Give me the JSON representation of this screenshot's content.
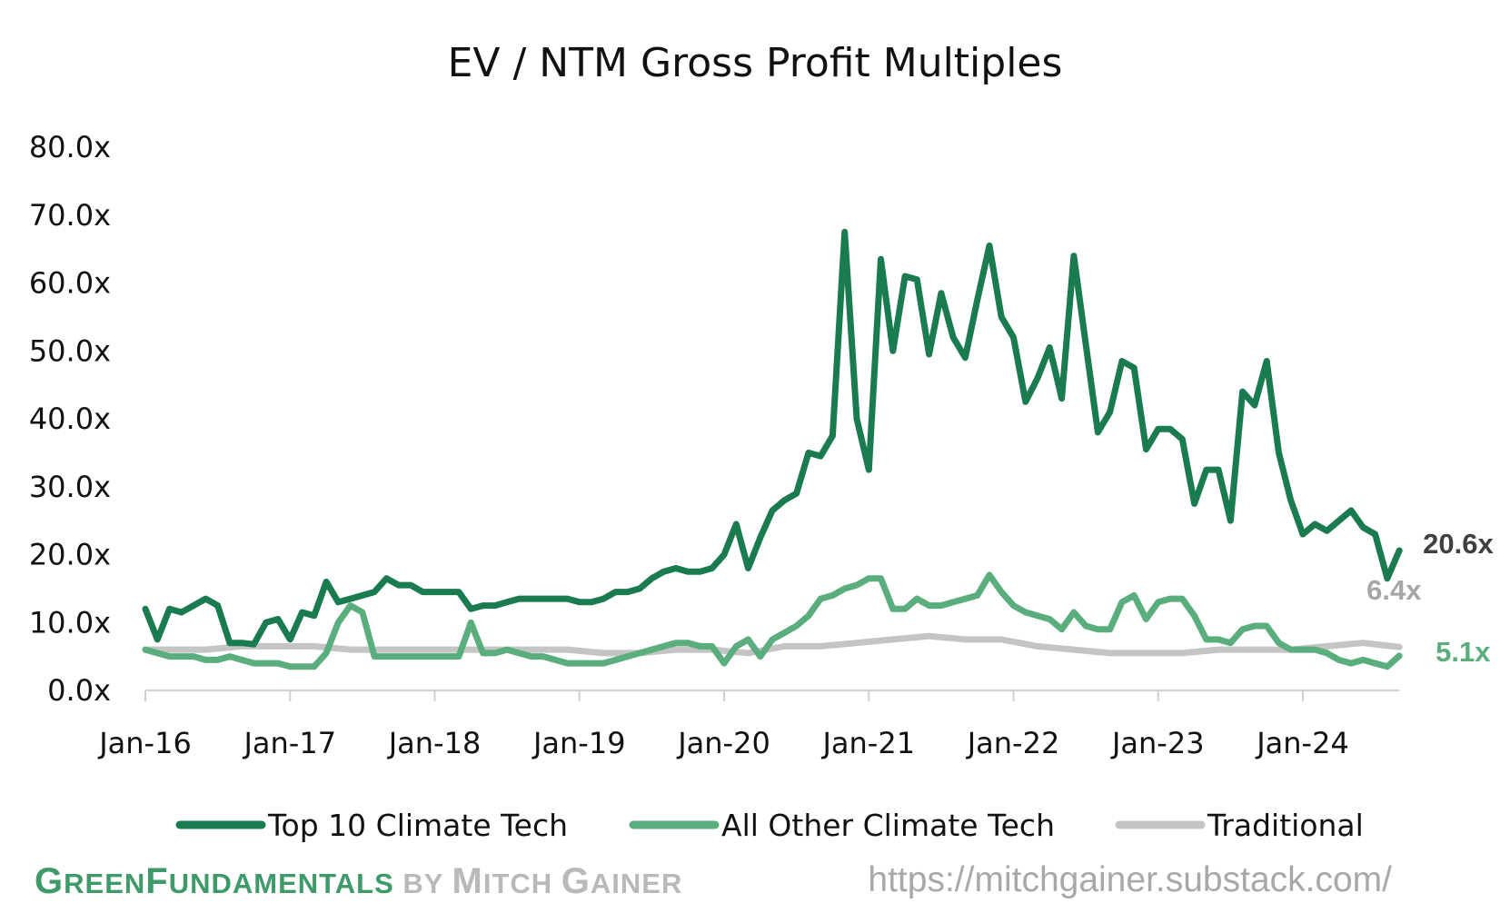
{
  "chart_data": {
    "type": "line",
    "title": "EV / NTM Gross Profit Multiples",
    "xlabel": "",
    "ylabel": "",
    "ylim": [
      0,
      80
    ],
    "yticks": [
      "0.0x",
      "10.0x",
      "20.0x",
      "30.0x",
      "40.0x",
      "50.0x",
      "60.0x",
      "70.0x",
      "80.0x"
    ],
    "xlim": [
      "2016-01",
      "2024-09"
    ],
    "xticks": [
      "Jan-16",
      "Jan-17",
      "Jan-18",
      "Jan-19",
      "Jan-20",
      "Jan-21",
      "Jan-22",
      "Jan-23",
      "Jan-24"
    ],
    "grid": false,
    "legend_position": "bottom",
    "series": [
      {
        "name": "Top 10 Climate Tech",
        "color": "#1a7a50",
        "end_label": "20.6x",
        "points": [
          [
            "2016-01",
            12.0
          ],
          [
            "2016-02",
            7.5
          ],
          [
            "2016-03",
            12.0
          ],
          [
            "2016-04",
            11.5
          ],
          [
            "2016-05",
            12.5
          ],
          [
            "2016-06",
            13.5
          ],
          [
            "2016-07",
            12.5
          ],
          [
            "2016-08",
            7.0
          ],
          [
            "2016-09",
            7.0
          ],
          [
            "2016-10",
            6.8
          ],
          [
            "2016-11",
            10.0
          ],
          [
            "2016-12",
            10.5
          ],
          [
            "2017-01",
            7.5
          ],
          [
            "2017-02",
            11.5
          ],
          [
            "2017-03",
            11.0
          ],
          [
            "2017-04",
            16.0
          ],
          [
            "2017-05",
            13.0
          ],
          [
            "2017-06",
            13.5
          ],
          [
            "2017-07",
            14.0
          ],
          [
            "2017-08",
            14.5
          ],
          [
            "2017-09",
            16.5
          ],
          [
            "2017-10",
            15.5
          ],
          [
            "2017-11",
            15.5
          ],
          [
            "2017-12",
            14.5
          ],
          [
            "2018-01",
            14.5
          ],
          [
            "2018-02",
            14.5
          ],
          [
            "2018-03",
            14.5
          ],
          [
            "2018-04",
            12.0
          ],
          [
            "2018-05",
            12.5
          ],
          [
            "2018-06",
            12.5
          ],
          [
            "2018-07",
            13.0
          ],
          [
            "2018-08",
            13.5
          ],
          [
            "2018-09",
            13.5
          ],
          [
            "2018-10",
            13.5
          ],
          [
            "2018-11",
            13.5
          ],
          [
            "2018-12",
            13.5
          ],
          [
            "2019-01",
            13.0
          ],
          [
            "2019-02",
            13.0
          ],
          [
            "2019-03",
            13.5
          ],
          [
            "2019-04",
            14.5
          ],
          [
            "2019-05",
            14.5
          ],
          [
            "2019-06",
            15.0
          ],
          [
            "2019-07",
            16.5
          ],
          [
            "2019-08",
            17.5
          ],
          [
            "2019-09",
            18.0
          ],
          [
            "2019-10",
            17.5
          ],
          [
            "2019-11",
            17.5
          ],
          [
            "2019-12",
            18.0
          ],
          [
            "2020-01",
            20.0
          ],
          [
            "2020-02",
            24.5
          ],
          [
            "2020-03",
            18.0
          ],
          [
            "2020-04",
            22.5
          ],
          [
            "2020-05",
            26.5
          ],
          [
            "2020-06",
            28.0
          ],
          [
            "2020-07",
            29.0
          ],
          [
            "2020-08",
            35.0
          ],
          [
            "2020-09",
            34.5
          ],
          [
            "2020-10",
            37.5
          ],
          [
            "2020-11",
            67.5
          ],
          [
            "2020-12",
            40.0
          ],
          [
            "2021-01",
            32.5
          ],
          [
            "2021-02",
            63.5
          ],
          [
            "2021-03",
            50.0
          ],
          [
            "2021-04",
            61.0
          ],
          [
            "2021-05",
            60.5
          ],
          [
            "2021-06",
            49.5
          ],
          [
            "2021-07",
            58.5
          ],
          [
            "2021-08",
            52.0
          ],
          [
            "2021-09",
            49.0
          ],
          [
            "2021-10",
            57.5
          ],
          [
            "2021-11",
            65.5
          ],
          [
            "2021-12",
            55.0
          ],
          [
            "2022-01",
            52.0
          ],
          [
            "2022-02",
            42.5
          ],
          [
            "2022-03",
            46.0
          ],
          [
            "2022-04",
            50.5
          ],
          [
            "2022-05",
            43.0
          ],
          [
            "2022-06",
            64.0
          ],
          [
            "2022-07",
            51.0
          ],
          [
            "2022-08",
            38.0
          ],
          [
            "2022-09",
            41.0
          ],
          [
            "2022-10",
            48.5
          ],
          [
            "2022-11",
            47.5
          ],
          [
            "2022-12",
            35.5
          ],
          [
            "2023-01",
            38.5
          ],
          [
            "2023-02",
            38.5
          ],
          [
            "2023-03",
            37.0
          ],
          [
            "2023-04",
            27.5
          ],
          [
            "2023-05",
            32.5
          ],
          [
            "2023-06",
            32.5
          ],
          [
            "2023-07",
            25.0
          ],
          [
            "2023-08",
            44.0
          ],
          [
            "2023-09",
            42.0
          ],
          [
            "2023-10",
            48.5
          ],
          [
            "2023-11",
            35.0
          ],
          [
            "2023-12",
            28.0
          ],
          [
            "2024-01",
            23.0
          ],
          [
            "2024-02",
            24.5
          ],
          [
            "2024-03",
            23.5
          ],
          [
            "2024-04",
            25.0
          ],
          [
            "2024-05",
            26.5
          ],
          [
            "2024-06",
            24.0
          ],
          [
            "2024-07",
            23.0
          ],
          [
            "2024-08",
            16.5
          ],
          [
            "2024-09",
            20.6
          ]
        ]
      },
      {
        "name": "All Other Climate Tech",
        "color": "#5aad7d",
        "end_label": "5.1x",
        "points": [
          [
            "2016-01",
            6.0
          ],
          [
            "2016-02",
            5.5
          ],
          [
            "2016-03",
            5.0
          ],
          [
            "2016-04",
            5.0
          ],
          [
            "2016-05",
            5.0
          ],
          [
            "2016-06",
            4.5
          ],
          [
            "2016-07",
            4.5
          ],
          [
            "2016-08",
            5.0
          ],
          [
            "2016-09",
            4.5
          ],
          [
            "2016-10",
            4.0
          ],
          [
            "2016-11",
            4.0
          ],
          [
            "2016-12",
            4.0
          ],
          [
            "2017-01",
            3.5
          ],
          [
            "2017-02",
            3.5
          ],
          [
            "2017-03",
            3.5
          ],
          [
            "2017-04",
            5.5
          ],
          [
            "2017-05",
            10.0
          ],
          [
            "2017-06",
            12.5
          ],
          [
            "2017-07",
            11.5
          ],
          [
            "2017-08",
            5.0
          ],
          [
            "2017-09",
            5.0
          ],
          [
            "2017-10",
            5.0
          ],
          [
            "2017-11",
            5.0
          ],
          [
            "2017-12",
            5.0
          ],
          [
            "2018-01",
            5.0
          ],
          [
            "2018-02",
            5.0
          ],
          [
            "2018-03",
            5.0
          ],
          [
            "2018-04",
            10.0
          ],
          [
            "2018-05",
            5.5
          ],
          [
            "2018-06",
            5.5
          ],
          [
            "2018-07",
            6.0
          ],
          [
            "2018-08",
            5.5
          ],
          [
            "2018-09",
            5.0
          ],
          [
            "2018-10",
            5.0
          ],
          [
            "2018-11",
            4.5
          ],
          [
            "2018-12",
            4.0
          ],
          [
            "2019-01",
            4.0
          ],
          [
            "2019-02",
            4.0
          ],
          [
            "2019-03",
            4.0
          ],
          [
            "2019-04",
            4.5
          ],
          [
            "2019-05",
            5.0
          ],
          [
            "2019-06",
            5.5
          ],
          [
            "2019-07",
            6.0
          ],
          [
            "2019-08",
            6.5
          ],
          [
            "2019-09",
            7.0
          ],
          [
            "2019-10",
            7.0
          ],
          [
            "2019-11",
            6.5
          ],
          [
            "2019-12",
            6.5
          ],
          [
            "2020-01",
            4.0
          ],
          [
            "2020-02",
            6.5
          ],
          [
            "2020-03",
            7.5
          ],
          [
            "2020-04",
            5.0
          ],
          [
            "2020-05",
            7.5
          ],
          [
            "2020-06",
            8.5
          ],
          [
            "2020-07",
            9.5
          ],
          [
            "2020-08",
            11.0
          ],
          [
            "2020-09",
            13.5
          ],
          [
            "2020-10",
            14.0
          ],
          [
            "2020-11",
            15.0
          ],
          [
            "2020-12",
            15.5
          ],
          [
            "2021-01",
            16.5
          ],
          [
            "2021-02",
            16.5
          ],
          [
            "2021-03",
            12.0
          ],
          [
            "2021-04",
            12.0
          ],
          [
            "2021-05",
            13.5
          ],
          [
            "2021-06",
            12.5
          ],
          [
            "2021-07",
            12.5
          ],
          [
            "2021-08",
            13.0
          ],
          [
            "2021-09",
            13.5
          ],
          [
            "2021-10",
            14.0
          ],
          [
            "2021-11",
            17.0
          ],
          [
            "2021-12",
            14.5
          ],
          [
            "2022-01",
            12.5
          ],
          [
            "2022-02",
            11.5
          ],
          [
            "2022-03",
            11.0
          ],
          [
            "2022-04",
            10.5
          ],
          [
            "2022-05",
            9.0
          ],
          [
            "2022-06",
            11.5
          ],
          [
            "2022-07",
            9.5
          ],
          [
            "2022-08",
            9.0
          ],
          [
            "2022-09",
            9.0
          ],
          [
            "2022-10",
            13.0
          ],
          [
            "2022-11",
            14.0
          ],
          [
            "2022-12",
            10.5
          ],
          [
            "2023-01",
            13.0
          ],
          [
            "2023-02",
            13.5
          ],
          [
            "2023-03",
            13.5
          ],
          [
            "2023-04",
            11.0
          ],
          [
            "2023-05",
            7.5
          ],
          [
            "2023-06",
            7.5
          ],
          [
            "2023-07",
            7.0
          ],
          [
            "2023-08",
            9.0
          ],
          [
            "2023-09",
            9.5
          ],
          [
            "2023-10",
            9.5
          ],
          [
            "2023-11",
            7.0
          ],
          [
            "2023-12",
            6.0
          ],
          [
            "2024-01",
            6.0
          ],
          [
            "2024-02",
            6.0
          ],
          [
            "2024-03",
            5.5
          ],
          [
            "2024-04",
            4.5
          ],
          [
            "2024-05",
            4.0
          ],
          [
            "2024-06",
            4.5
          ],
          [
            "2024-07",
            4.0
          ],
          [
            "2024-08",
            3.5
          ],
          [
            "2024-09",
            5.1
          ]
        ]
      },
      {
        "name": "Traditional",
        "color": "#c4c4c4",
        "end_label": "6.4x",
        "points": [
          [
            "2016-01",
            6.0
          ],
          [
            "2016-03",
            6.0
          ],
          [
            "2016-06",
            6.0
          ],
          [
            "2016-09",
            6.5
          ],
          [
            "2016-12",
            6.5
          ],
          [
            "2017-03",
            6.5
          ],
          [
            "2017-06",
            6.0
          ],
          [
            "2017-09",
            6.0
          ],
          [
            "2017-12",
            6.0
          ],
          [
            "2018-03",
            6.0
          ],
          [
            "2018-06",
            6.0
          ],
          [
            "2018-09",
            6.0
          ],
          [
            "2018-12",
            6.0
          ],
          [
            "2019-03",
            5.5
          ],
          [
            "2019-06",
            5.5
          ],
          [
            "2019-09",
            6.0
          ],
          [
            "2019-12",
            6.0
          ],
          [
            "2020-03",
            5.5
          ],
          [
            "2020-06",
            6.5
          ],
          [
            "2020-09",
            6.5
          ],
          [
            "2020-12",
            7.0
          ],
          [
            "2021-03",
            7.5
          ],
          [
            "2021-06",
            8.0
          ],
          [
            "2021-09",
            7.5
          ],
          [
            "2021-12",
            7.5
          ],
          [
            "2022-03",
            6.5
          ],
          [
            "2022-06",
            6.0
          ],
          [
            "2022-09",
            5.5
          ],
          [
            "2022-12",
            5.5
          ],
          [
            "2023-03",
            5.5
          ],
          [
            "2023-06",
            6.0
          ],
          [
            "2023-09",
            6.0
          ],
          [
            "2023-12",
            6.0
          ],
          [
            "2024-03",
            6.5
          ],
          [
            "2024-06",
            7.0
          ],
          [
            "2024-09",
            6.4
          ]
        ]
      }
    ]
  },
  "footer": {
    "brand_1": "G",
    "brand_2": "REEN",
    "brand_3": "F",
    "brand_4": "UNDAMENTALS",
    "brand_5": " BY ",
    "brand_6": "M",
    "brand_7": "ITCH ",
    "brand_8": "G",
    "brand_9": "AINER",
    "url": "https://mitchgainer.substack.com/"
  }
}
